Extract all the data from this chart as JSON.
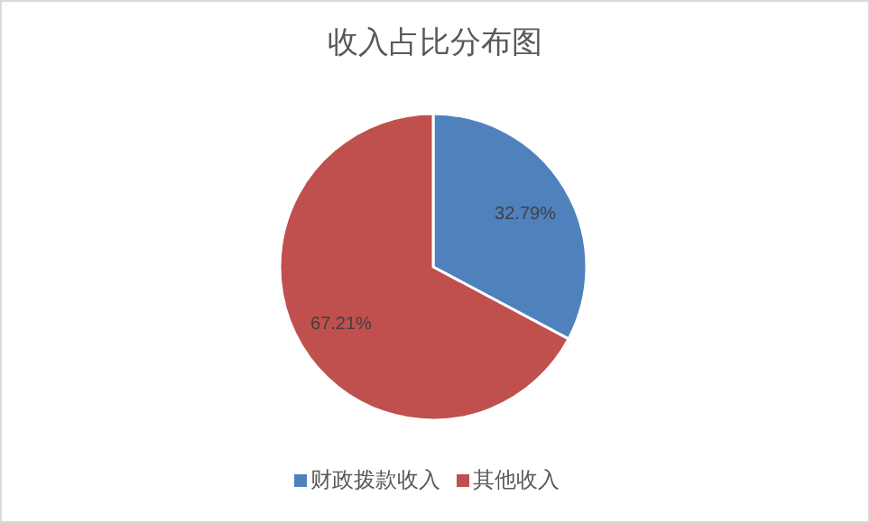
{
  "chart_data": {
    "type": "pie",
    "title": "收入占比分布图",
    "categories": [
      "财政拨款收入",
      "其他收入"
    ],
    "values": [
      32.79,
      67.21
    ],
    "colors": [
      "#4f81bd",
      "#c0504d"
    ],
    "value_labels": [
      "32.79%",
      "67.21%"
    ],
    "legend": "bottom"
  }
}
